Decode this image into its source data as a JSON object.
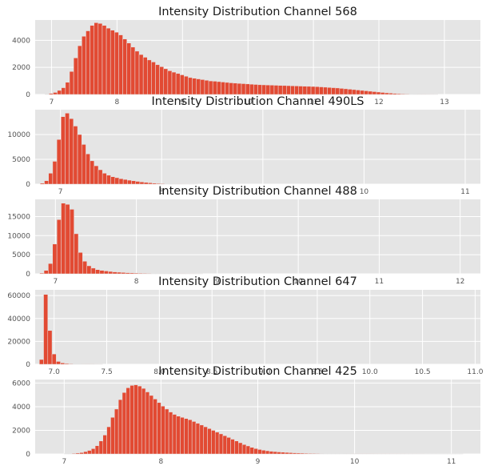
{
  "style": {
    "bar_color": "#e24a33",
    "plot_background": "#e5e5e5",
    "grid_color": "#ffffff",
    "grid": true
  },
  "chart_data": [
    {
      "type": "bar",
      "subtype": "histogram",
      "title": "Intensity Distribution Channel 568",
      "xlim": [
        6.75,
        13.55
      ],
      "ylim": [
        0,
        5500
      ],
      "xticks": [
        7,
        8,
        9,
        10,
        11,
        12,
        13
      ],
      "xtick_labels": [
        "7",
        "8",
        "9",
        "10",
        "11",
        "12",
        "13"
      ],
      "yticks": [
        0,
        2000,
        4000
      ],
      "ytick_labels": [
        "0",
        "2000",
        "4000"
      ],
      "bin_start": 6.9,
      "bin_width": 0.0625,
      "values": [
        30,
        80,
        150,
        300,
        500,
        900,
        1700,
        2700,
        3600,
        4300,
        4700,
        5100,
        5300,
        5250,
        5100,
        4900,
        4750,
        4600,
        4400,
        4100,
        3800,
        3500,
        3200,
        2950,
        2750,
        2550,
        2400,
        2200,
        2050,
        1900,
        1750,
        1650,
        1550,
        1450,
        1350,
        1250,
        1200,
        1150,
        1100,
        1050,
        1000,
        980,
        950,
        920,
        890,
        860,
        840,
        820,
        800,
        780,
        760,
        740,
        720,
        710,
        700,
        690,
        680,
        670,
        660,
        650,
        640,
        630,
        620,
        610,
        600,
        590,
        580,
        560,
        540,
        520,
        500,
        480,
        450,
        420,
        390,
        360,
        330,
        300,
        270,
        240,
        210,
        180,
        150,
        120,
        100,
        80,
        60,
        45,
        35,
        25,
        18,
        12,
        8,
        5,
        3,
        2
      ]
    },
    {
      "type": "bar",
      "subtype": "histogram",
      "title": "Intensity Distribution Channel 490LS",
      "xlim": [
        6.75,
        11.15
      ],
      "ylim": [
        0,
        15000
      ],
      "xticks": [
        7,
        8,
        9,
        10,
        11
      ],
      "xtick_labels": [
        "7",
        "8",
        "9",
        "10",
        "11"
      ],
      "yticks": [
        0,
        5000,
        10000
      ],
      "ytick_labels": [
        "0",
        "5000",
        "10000"
      ],
      "bin_start": 6.8,
      "bin_width": 0.041,
      "values": [
        200,
        700,
        2200,
        4600,
        9000,
        13600,
        14300,
        13200,
        11700,
        10000,
        8000,
        6100,
        4700,
        3700,
        2900,
        2200,
        1800,
        1500,
        1300,
        1100,
        950,
        800,
        680,
        560,
        450,
        350,
        270,
        200,
        150,
        110,
        80,
        55,
        35,
        20,
        12,
        8,
        5,
        3
      ]
    },
    {
      "type": "bar",
      "subtype": "histogram",
      "title": "Intensity Distribution Channel 488",
      "xlim": [
        6.75,
        12.25
      ],
      "ylim": [
        0,
        19500
      ],
      "xticks": [
        7,
        8,
        9,
        10,
        11,
        12
      ],
      "xtick_labels": [
        "7",
        "8",
        "9",
        "10",
        "11",
        "12"
      ],
      "yticks": [
        0,
        5000,
        10000,
        15000
      ],
      "ytick_labels": [
        "0",
        "5000",
        "10000",
        "15000"
      ],
      "bin_start": 6.7,
      "bin_width": 0.053,
      "values": [
        0,
        0,
        200,
        900,
        2700,
        7800,
        14200,
        18500,
        18200,
        16900,
        10500,
        5600,
        3300,
        2100,
        1500,
        1100,
        900,
        750,
        620,
        500,
        420,
        350,
        290,
        240,
        200,
        170,
        140,
        120,
        100,
        85,
        70,
        60,
        50,
        40,
        32,
        25,
        18,
        12,
        8,
        5
      ]
    },
    {
      "type": "bar",
      "subtype": "histogram",
      "title": "Intensity Distribution Channel 647",
      "xlim": [
        6.82,
        11.05
      ],
      "ylim": [
        0,
        65000
      ],
      "xticks": [
        7.0,
        7.5,
        8.0,
        8.5,
        9.0,
        9.5,
        10.0,
        10.5,
        11.0
      ],
      "xtick_labels": [
        "7.0",
        "7.5",
        "8.0",
        "8.5",
        "9.0",
        "9.5",
        "10.0",
        "10.5",
        "11.0"
      ],
      "yticks": [
        0,
        20000,
        40000,
        60000
      ],
      "ytick_labels": [
        "0",
        "20000",
        "40000",
        "60000"
      ],
      "bin_start": 6.86,
      "bin_width": 0.04,
      "values": [
        4200,
        61000,
        29500,
        9000,
        2500,
        1200,
        700,
        450,
        300,
        200,
        150,
        100,
        70,
        40,
        20
      ]
    },
    {
      "type": "bar",
      "subtype": "histogram",
      "title": "Intensity Distribution Channel 425",
      "xlim": [
        6.7,
        11.3
      ],
      "ylim": [
        0,
        6300
      ],
      "xticks": [
        7,
        8,
        9,
        10,
        11
      ],
      "xtick_labels": [
        "7",
        "8",
        "9",
        "10",
        "11"
      ],
      "yticks": [
        0,
        2000,
        4000,
        6000
      ],
      "ytick_labels": [
        "0",
        "2000",
        "4000",
        "6000"
      ],
      "bin_start": 7.0,
      "bin_width": 0.04,
      "values": [
        20,
        30,
        50,
        80,
        120,
        200,
        300,
        450,
        700,
        1100,
        1600,
        2300,
        3100,
        3800,
        4600,
        5200,
        5600,
        5800,
        5850,
        5750,
        5550,
        5250,
        4950,
        4650,
        4350,
        4050,
        3800,
        3550,
        3350,
        3200,
        3100,
        3000,
        2900,
        2750,
        2600,
        2450,
        2300,
        2150,
        2000,
        1850,
        1700,
        1550,
        1400,
        1250,
        1100,
        950,
        800,
        680,
        560,
        460,
        380,
        320,
        270,
        230,
        200,
        170,
        150,
        130,
        110,
        95,
        80,
        70,
        60,
        50,
        45,
        40,
        35,
        30,
        28,
        25,
        22,
        20,
        18,
        16,
        14,
        12,
        10,
        9,
        8,
        7,
        6,
        5,
        5,
        4,
        4,
        3,
        3,
        3,
        2,
        2,
        2,
        2,
        2,
        1,
        1,
        1,
        1,
        1,
        1,
        1,
        1,
        1,
        1
      ]
    }
  ]
}
